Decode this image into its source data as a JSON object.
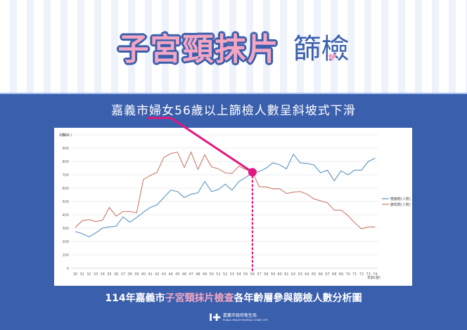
{
  "header": {
    "title_main": "子宮頸抹片",
    "title_sub": "篩檢",
    "heart_icon": "♥"
  },
  "headline": "嘉義市婦女56歲以上篩檢人數呈斜坡式下滑",
  "caption": {
    "prefix": "114年嘉義市",
    "highlight": "子宮頸抹片檢查",
    "suffix": "各年齡層參與篩檢人數分析圖"
  },
  "logo": {
    "mark": "I✚",
    "name": "嘉義市政府衛生局",
    "english": "PUBLIC HEALTH BUREAU CHIAYI CITY"
  },
  "colors": {
    "brand_blue": "#3a5fad",
    "pink": "#f3a6c3",
    "magenta": "#e0187f",
    "series_blue": "#5b93c0",
    "series_red": "#c97b6b"
  },
  "chart_data": {
    "type": "line",
    "title": "114年嘉義市子宮頸抹片檢查各年齡層參與篩檢人數分析圖",
    "xlabel": "年齡(歲)",
    "ylabel": "人數(人)",
    "ylim": [
      0,
      1000
    ],
    "yticks": [
      0,
      100,
      200,
      300,
      400,
      500,
      600,
      700,
      800,
      900,
      1000
    ],
    "grid": true,
    "legend_position": "right",
    "x": [
      30,
      31,
      32,
      33,
      34,
      35,
      36,
      37,
      38,
      39,
      40,
      41,
      42,
      43,
      44,
      45,
      46,
      47,
      48,
      49,
      50,
      51,
      52,
      53,
      54,
      55,
      56,
      57,
      58,
      59,
      60,
      61,
      62,
      63,
      64,
      65,
      66,
      67,
      68,
      69,
      70,
      71,
      72,
      73,
      74
    ],
    "series": [
      {
        "name": "應篩數(人數)",
        "color": "#5b93c0",
        "values": [
          275,
          260,
          235,
          265,
          300,
          310,
          315,
          385,
          345,
          380,
          420,
          455,
          475,
          530,
          585,
          575,
          530,
          555,
          565,
          650,
          575,
          590,
          630,
          585,
          650,
          680,
          715,
          725,
          750,
          790,
          775,
          745,
          855,
          790,
          785,
          775,
          715,
          735,
          655,
          730,
          700,
          735,
          735,
          800,
          825
        ]
      },
      {
        "name": "篩檢數(人數)",
        "color": "#c97b6b",
        "values": [
          305,
          355,
          365,
          350,
          360,
          455,
          390,
          425,
          425,
          415,
          665,
          695,
          720,
          830,
          860,
          870,
          755,
          870,
          740,
          850,
          760,
          745,
          715,
          710,
          765,
          740,
          720,
          610,
          610,
          595,
          595,
          560,
          570,
          575,
          555,
          520,
          505,
          490,
          435,
          435,
          395,
          340,
          295,
          310,
          310
        ]
      }
    ],
    "annotations": [
      {
        "type": "marker",
        "x": 56,
        "label": "嘉義市婦女56歲以上篩檢人數呈斜坡式下滑"
      },
      {
        "type": "vertical_dotted_line",
        "x": 56
      }
    ]
  }
}
